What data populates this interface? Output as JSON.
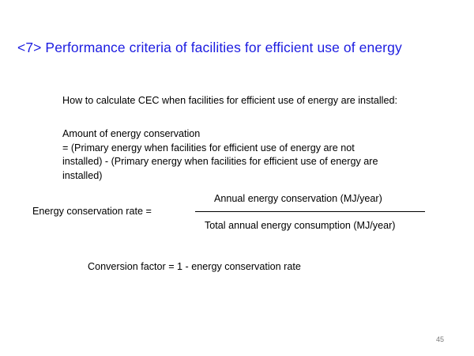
{
  "slide": {
    "title": "<7> Performance criteria of facilities for efficient use of energy",
    "calc_heading": "How to calculate CEC when facilities for efficient use of energy are installed:",
    "amount_lines": [
      "Amount of energy conservation",
      "= (Primary energy when facilities for efficient use of energy are not",
      "installed) - (Primary energy when facilities for efficient use of energy are",
      "installed)"
    ],
    "rate_label": "Energy conservation rate =",
    "numerator": "Annual energy conservation (MJ/year)",
    "denominator": "Total annual energy consumption (MJ/year)",
    "conversion": "Conversion factor = 1 - energy conservation rate",
    "page_number": "45"
  },
  "colors": {
    "title": "#1c1ce0",
    "text": "#000000",
    "page_number": "#7a7a7a"
  }
}
